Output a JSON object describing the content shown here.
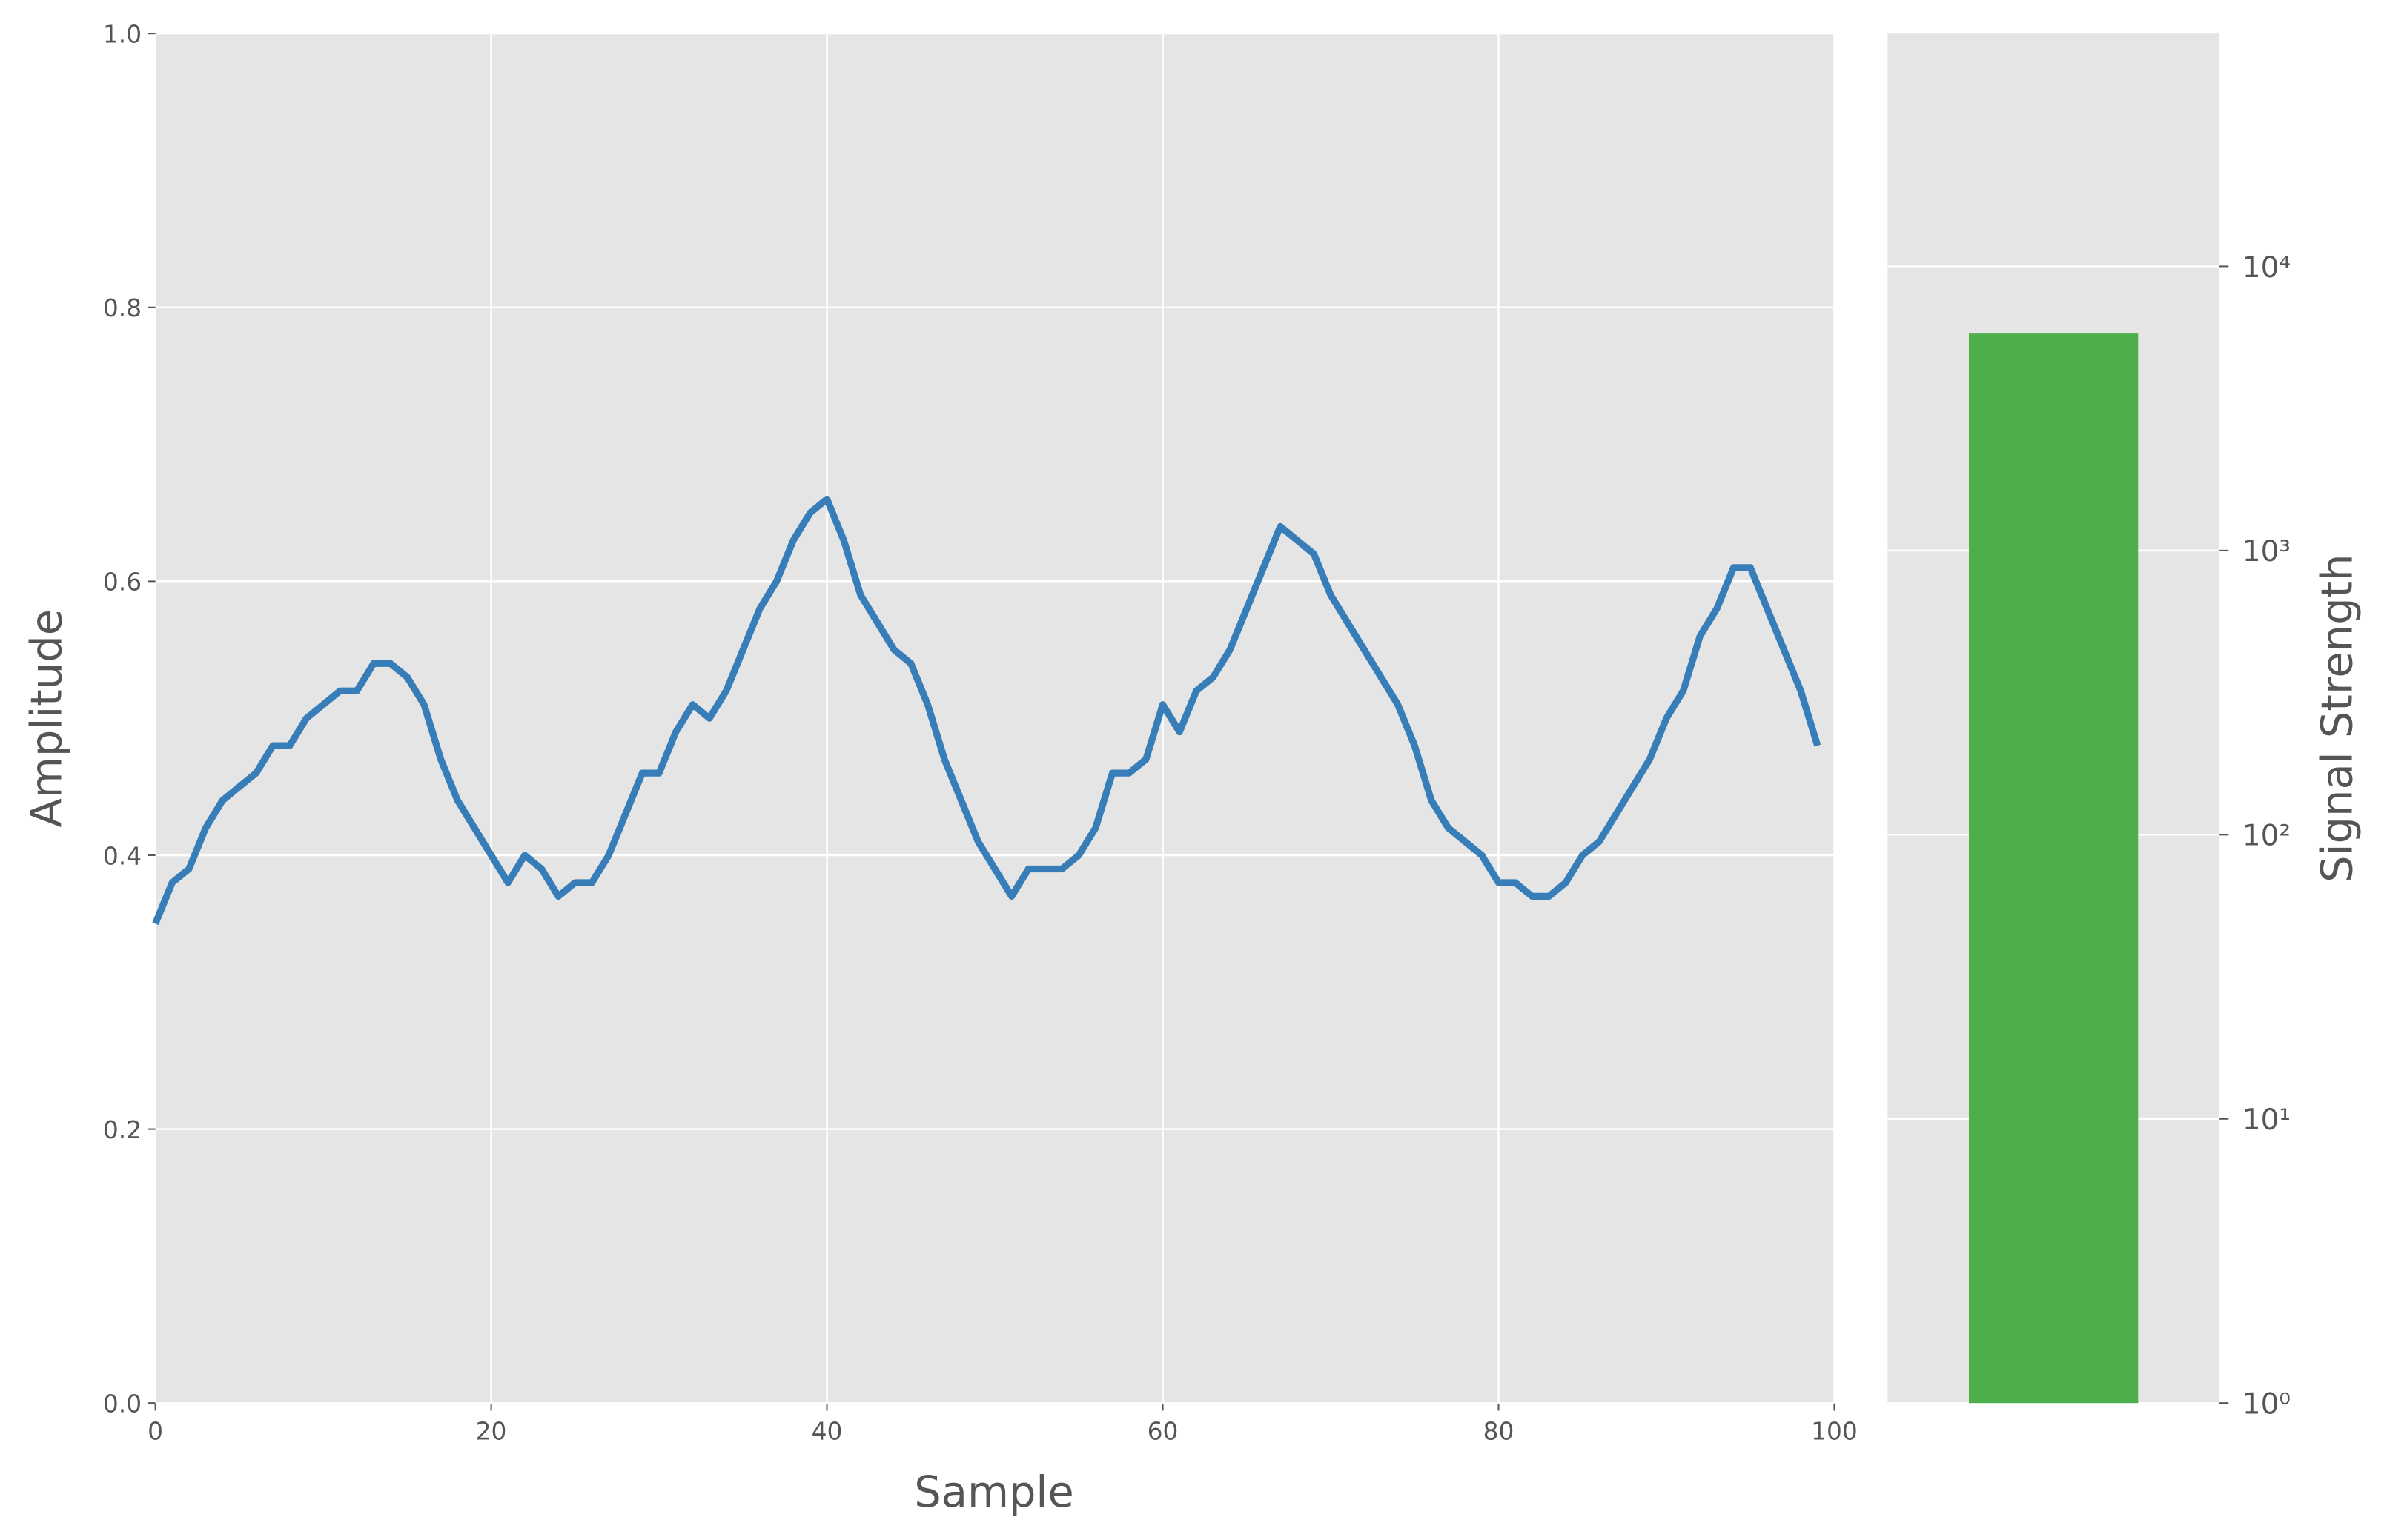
{
  "chart_data": [
    {
      "type": "line",
      "x_label": "Sample",
      "y_label": "Amplitude",
      "color": "#377eb8",
      "grid": true,
      "x": [
        0,
        1,
        2,
        3,
        4,
        5,
        6,
        7,
        8,
        9,
        10,
        11,
        12,
        13,
        14,
        15,
        16,
        17,
        18,
        19,
        20,
        21,
        22,
        23,
        24,
        25,
        26,
        27,
        28,
        29,
        30,
        31,
        32,
        33,
        34,
        35,
        36,
        37,
        38,
        39,
        40,
        41,
        42,
        43,
        44,
        45,
        46,
        47,
        48,
        49,
        50,
        51,
        52,
        53,
        54,
        55,
        56,
        57,
        58,
        59,
        60,
        61,
        62,
        63,
        64,
        65,
        66,
        67,
        68,
        69,
        70,
        71,
        72,
        73,
        74,
        75,
        76,
        77,
        78,
        79,
        80,
        81,
        82,
        83,
        84,
        85,
        86,
        87,
        88,
        89,
        90,
        91,
        92,
        93,
        94,
        95,
        96,
        97,
        98,
        99
      ],
      "values": [
        0.35,
        0.38,
        0.39,
        0.42,
        0.44,
        0.45,
        0.46,
        0.48,
        0.48,
        0.5,
        0.51,
        0.52,
        0.52,
        0.54,
        0.54,
        0.53,
        0.51,
        0.47,
        0.44,
        0.42,
        0.4,
        0.38,
        0.4,
        0.39,
        0.37,
        0.38,
        0.38,
        0.4,
        0.43,
        0.46,
        0.46,
        0.49,
        0.51,
        0.5,
        0.52,
        0.55,
        0.58,
        0.6,
        0.63,
        0.65,
        0.66,
        0.63,
        0.59,
        0.57,
        0.55,
        0.54,
        0.51,
        0.47,
        0.44,
        0.41,
        0.39,
        0.37,
        0.39,
        0.39,
        0.39,
        0.4,
        0.42,
        0.46,
        0.46,
        0.47,
        0.51,
        0.49,
        0.52,
        0.53,
        0.55,
        0.58,
        0.61,
        0.64,
        0.63,
        0.62,
        0.59,
        0.57,
        0.55,
        0.53,
        0.51,
        0.48,
        0.44,
        0.42,
        0.41,
        0.4,
        0.38,
        0.38,
        0.37,
        0.37,
        0.38,
        0.4,
        0.41,
        0.43,
        0.45,
        0.47,
        0.5,
        0.52,
        0.56,
        0.58,
        0.61,
        0.61,
        0.58,
        0.55,
        0.52,
        0.48
      ],
      "xlim": [
        0,
        100
      ],
      "xticks": [
        0,
        20,
        40,
        60,
        80,
        100
      ],
      "ylim": [
        0,
        1
      ],
      "yticks": [
        {
          "value": 0,
          "label": "0.0"
        },
        {
          "value": 0.2,
          "label": "0.2"
        },
        {
          "value": 0.4,
          "label": "0.4"
        },
        {
          "value": 0.6,
          "label": "0.6"
        },
        {
          "value": 0.8,
          "label": "0.8"
        },
        {
          "value": 1,
          "label": "1.0"
        }
      ]
    },
    {
      "type": "bar",
      "y_label": "Signal Strength",
      "color": "#4daf4a",
      "log": true,
      "grid": true,
      "categories": [
        null
      ],
      "values": [
        5800
      ],
      "ylim": [
        1,
        66000
      ],
      "yticks": [
        {
          "value": 1,
          "label": "10⁰"
        },
        {
          "value": 10,
          "label": "10¹"
        },
        {
          "value": 100,
          "label": "10²"
        },
        {
          "value": 1000,
          "label": "10³"
        },
        {
          "value": 10000,
          "label": "10⁴"
        }
      ]
    }
  ]
}
